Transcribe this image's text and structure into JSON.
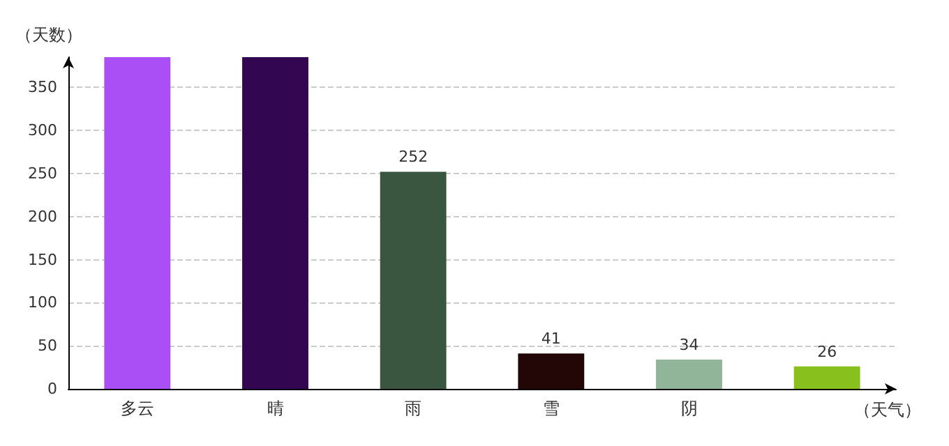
{
  "chart_data": {
    "type": "bar",
    "xlabel": "（天气）",
    "ylabel": "（天数）",
    "categories": [
      "多云",
      "晴",
      "雨",
      "雪",
      "阴",
      null
    ],
    "values": [
      385,
      385,
      252,
      41,
      34,
      26
    ],
    "colors": [
      "#aa4ef5",
      "#320650",
      "#3a5640",
      "#230606",
      "#91b598",
      "#88c01e"
    ],
    "value_labels": [
      null,
      null,
      "252",
      "41",
      "34",
      "26"
    ],
    "ylim": [
      0,
      385
    ],
    "yticks": [
      0,
      50,
      100,
      150,
      200,
      250,
      300,
      350
    ],
    "grid": "y"
  }
}
